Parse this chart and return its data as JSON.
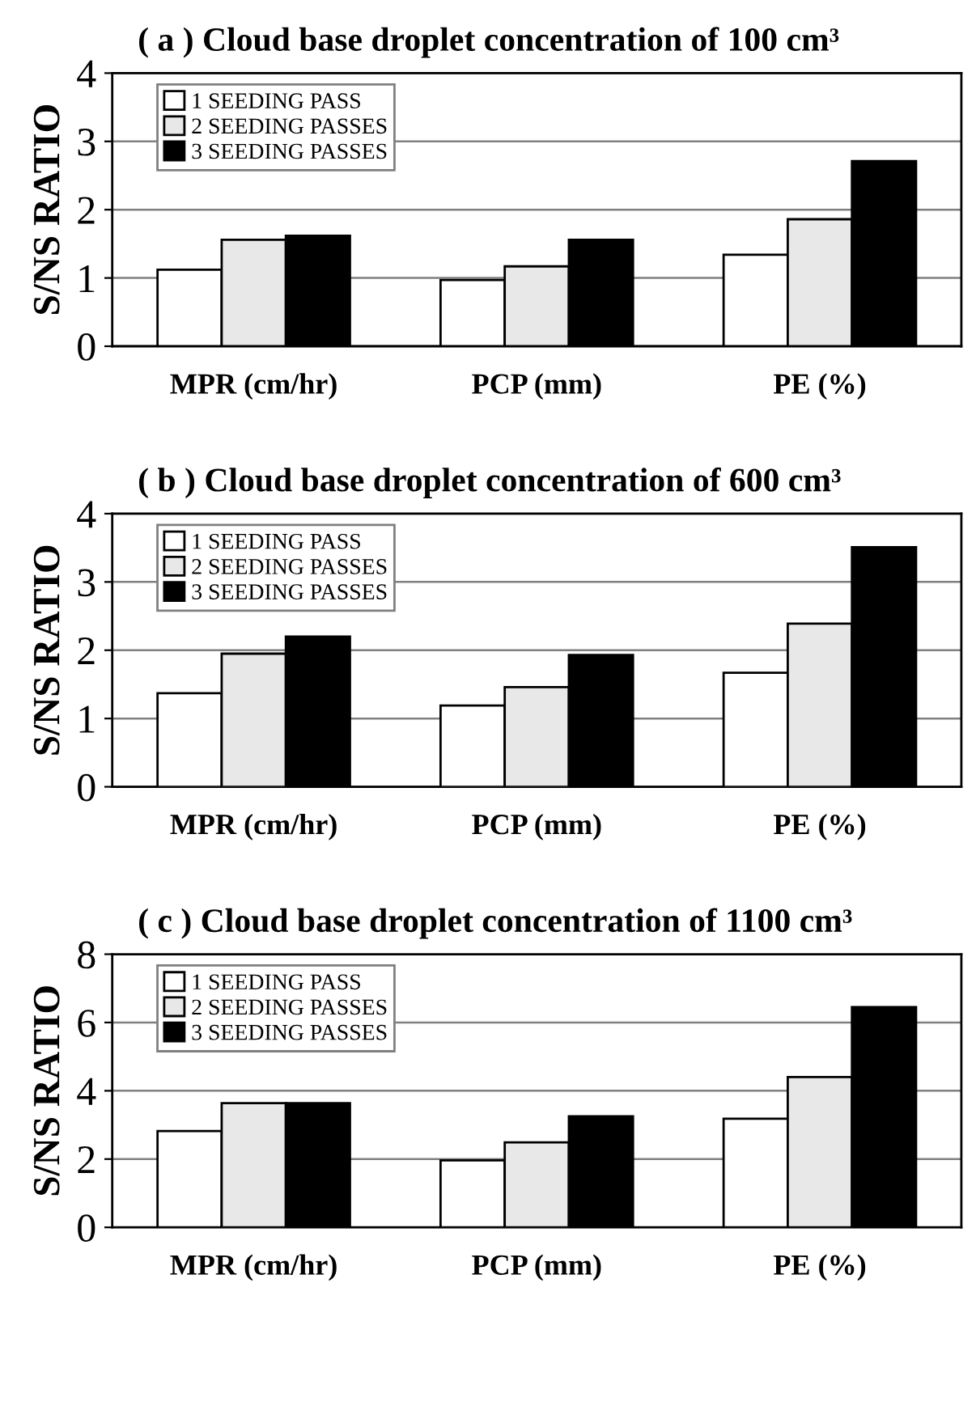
{
  "chart_data": [
    {
      "type": "bar",
      "title": "( a ) Cloud base droplet concentration of 100 cm³",
      "ylabel": "S/NS RATIO",
      "categories": [
        "MPR (cm/hr)",
        "PCP (mm)",
        "PE (%)"
      ],
      "ylim": [
        0,
        4
      ],
      "yticks": [
        0,
        1,
        2,
        3,
        4
      ],
      "grid": "y",
      "legend": "top left",
      "series": [
        {
          "name": "1 SEEDING PASS",
          "color": "#ffffff",
          "values": [
            1.12,
            0.97,
            1.34
          ]
        },
        {
          "name": "2 SEEDING PASSES",
          "color": "#e8e8e8",
          "values": [
            1.56,
            1.17,
            1.86
          ]
        },
        {
          "name": "3 SEEDING PASSES",
          "color": "#000000",
          "values": [
            1.62,
            1.56,
            2.71
          ]
        }
      ]
    },
    {
      "type": "bar",
      "title": "( b ) Cloud base droplet concentration of 600 cm³",
      "ylabel": "S/NS RATIO",
      "categories": [
        "MPR (cm/hr)",
        "PCP (mm)",
        "PE (%)"
      ],
      "ylim": [
        0,
        4
      ],
      "yticks": [
        0,
        1,
        2,
        3,
        4
      ],
      "grid": "y",
      "legend": "top left",
      "series": [
        {
          "name": "1 SEEDING PASS",
          "color": "#ffffff",
          "values": [
            1.37,
            1.19,
            1.67
          ]
        },
        {
          "name": "2 SEEDING PASSES",
          "color": "#e8e8e8",
          "values": [
            1.95,
            1.46,
            2.39
          ]
        },
        {
          "name": "3 SEEDING PASSES",
          "color": "#000000",
          "values": [
            2.2,
            1.93,
            3.51
          ]
        }
      ]
    },
    {
      "type": "bar",
      "title": "( c ) Cloud base droplet concentration of 1100 cm³",
      "ylabel": "S/NS RATIO",
      "categories": [
        "MPR (cm/hr)",
        "PCP (mm)",
        "PE (%)"
      ],
      "ylim": [
        0,
        8
      ],
      "yticks": [
        0,
        2,
        4,
        6,
        8
      ],
      "grid": "y",
      "legend": "top left",
      "series": [
        {
          "name": "1 SEEDING PASS",
          "color": "#ffffff",
          "values": [
            2.82,
            1.96,
            3.18
          ]
        },
        {
          "name": "2 SEEDING PASSES",
          "color": "#e8e8e8",
          "values": [
            3.64,
            2.49,
            4.4
          ]
        },
        {
          "name": "3 SEEDING PASSES",
          "color": "#000000",
          "values": [
            3.64,
            3.25,
            6.45
          ]
        }
      ]
    }
  ]
}
